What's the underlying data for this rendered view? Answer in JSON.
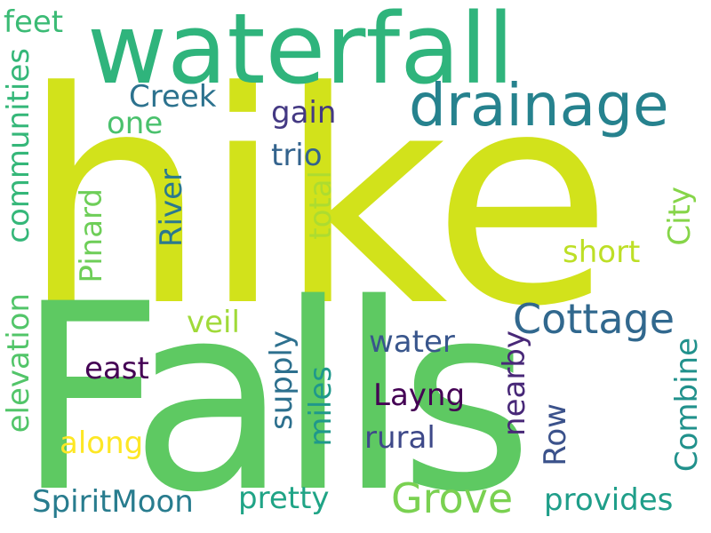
{
  "background": "#ffffff",
  "words": [
    {
      "key": "hike",
      "text": "hike",
      "color": "#d2e21b"
    },
    {
      "key": "falls",
      "text": "Falls",
      "color": "#5ec962"
    },
    {
      "key": "waterfall",
      "text": "waterfall",
      "color": "#2fb47c"
    },
    {
      "key": "drainage",
      "text": "drainage",
      "color": "#26828e"
    },
    {
      "key": "cottage",
      "text": "Cottage",
      "color": "#31688e"
    },
    {
      "key": "grove",
      "text": "Grove",
      "color": "#7ad151"
    },
    {
      "key": "creek",
      "text": "Creek",
      "color": "#2c728e"
    },
    {
      "key": "feet",
      "text": "feet",
      "color": "#3bbb75"
    },
    {
      "key": "one",
      "text": "one",
      "color": "#4ac16d"
    },
    {
      "key": "gain",
      "text": "gain",
      "color": "#443983"
    },
    {
      "key": "trio",
      "text": "trio",
      "color": "#33638d"
    },
    {
      "key": "short",
      "text": "short",
      "color": "#bddf26"
    },
    {
      "key": "veil",
      "text": "veil",
      "color": "#a0da39"
    },
    {
      "key": "water",
      "text": "water",
      "color": "#39568c"
    },
    {
      "key": "east",
      "text": "east",
      "color": "#440154"
    },
    {
      "key": "layng",
      "text": "Layng",
      "color": "#440154"
    },
    {
      "key": "rural",
      "text": "rural",
      "color": "#3e4989"
    },
    {
      "key": "along",
      "text": "along",
      "color": "#fde725"
    },
    {
      "key": "pretty",
      "text": "pretty",
      "color": "#20a486"
    },
    {
      "key": "provides",
      "text": "provides",
      "color": "#1f9e89"
    },
    {
      "key": "spiritmoon",
      "text": "SpiritMoon",
      "color": "#287c8e"
    },
    {
      "key": "communities",
      "text": "communities",
      "color": "#35b779"
    },
    {
      "key": "elevation",
      "text": "elevation",
      "color": "#52c569"
    },
    {
      "key": "pinard",
      "text": "Pinard",
      "color": "#6ece58"
    },
    {
      "key": "river",
      "text": "River",
      "color": "#2a788e"
    },
    {
      "key": "total",
      "text": "total",
      "color": "#addc30"
    },
    {
      "key": "supply",
      "text": "supply",
      "color": "#2d708e"
    },
    {
      "key": "miles",
      "text": "miles",
      "color": "#1f988b"
    },
    {
      "key": "nearby",
      "text": "nearby",
      "color": "#482878"
    },
    {
      "key": "row",
      "text": "Row",
      "color": "#3b528b"
    },
    {
      "key": "city",
      "text": "City",
      "color": "#86d549"
    },
    {
      "key": "combine",
      "text": "Combine",
      "color": "#21918c"
    }
  ]
}
